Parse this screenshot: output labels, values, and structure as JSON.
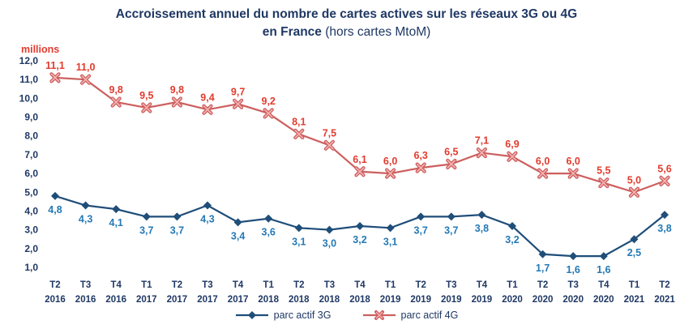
{
  "header": {
    "title_line1": "Accroissement annuel du nombre de cartes actives sur les réseaux 3G ou 4G",
    "title_line2_bold": "en France",
    "title_line2_rest": " (hors cartes MtoM)"
  },
  "chart_data": {
    "type": "line",
    "title": "Accroissement annuel du nombre de cartes actives sur les réseaux 3G ou 4G en France (hors cartes MtoM)",
    "unit_label": "millions",
    "ylim": [
      1,
      12
    ],
    "ytick_labels": [
      "12,0",
      "11,0",
      "10,0",
      "9,0",
      "8,0",
      "7,0",
      "6,0",
      "5,0",
      "4,0",
      "3,0",
      "2,0",
      "1,0"
    ],
    "grid": false,
    "legend_position": "bottom",
    "quarters": [
      "T2",
      "T3",
      "T4",
      "T1",
      "T2",
      "T3",
      "T4",
      "T1",
      "T2",
      "T3",
      "T4",
      "T1",
      "T2",
      "T3",
      "T4",
      "T1",
      "T2",
      "T3",
      "T4",
      "T1",
      "T2"
    ],
    "years": [
      "2016",
      "2016",
      "2016",
      "2017",
      "2017",
      "2017",
      "2017",
      "2018",
      "2018",
      "2018",
      "2018",
      "2019",
      "2019",
      "2019",
      "2019",
      "2020",
      "2020",
      "2020",
      "2020",
      "2021",
      "2021"
    ],
    "series": [
      {
        "name": "parc actif 3G",
        "marker": "diamond",
        "color": "#1F4E79",
        "label_color": "#2479B5",
        "label_position": "below",
        "values": [
          4.8,
          4.3,
          4.1,
          3.7,
          3.7,
          4.3,
          3.4,
          3.6,
          3.1,
          3.0,
          3.2,
          3.1,
          3.7,
          3.7,
          3.8,
          3.2,
          1.7,
          1.6,
          1.6,
          2.5,
          3.8
        ]
      },
      {
        "name": "parc actif 4G",
        "marker": "x",
        "color": "#CD5F5F",
        "label_color": "#E23B2E",
        "label_position": "above",
        "values": [
          11.1,
          11.0,
          9.8,
          9.5,
          9.8,
          9.4,
          9.7,
          9.2,
          8.1,
          7.5,
          6.1,
          6.0,
          6.3,
          6.5,
          7.1,
          6.9,
          6.0,
          6.0,
          5.5,
          5.0,
          5.6
        ]
      }
    ]
  }
}
